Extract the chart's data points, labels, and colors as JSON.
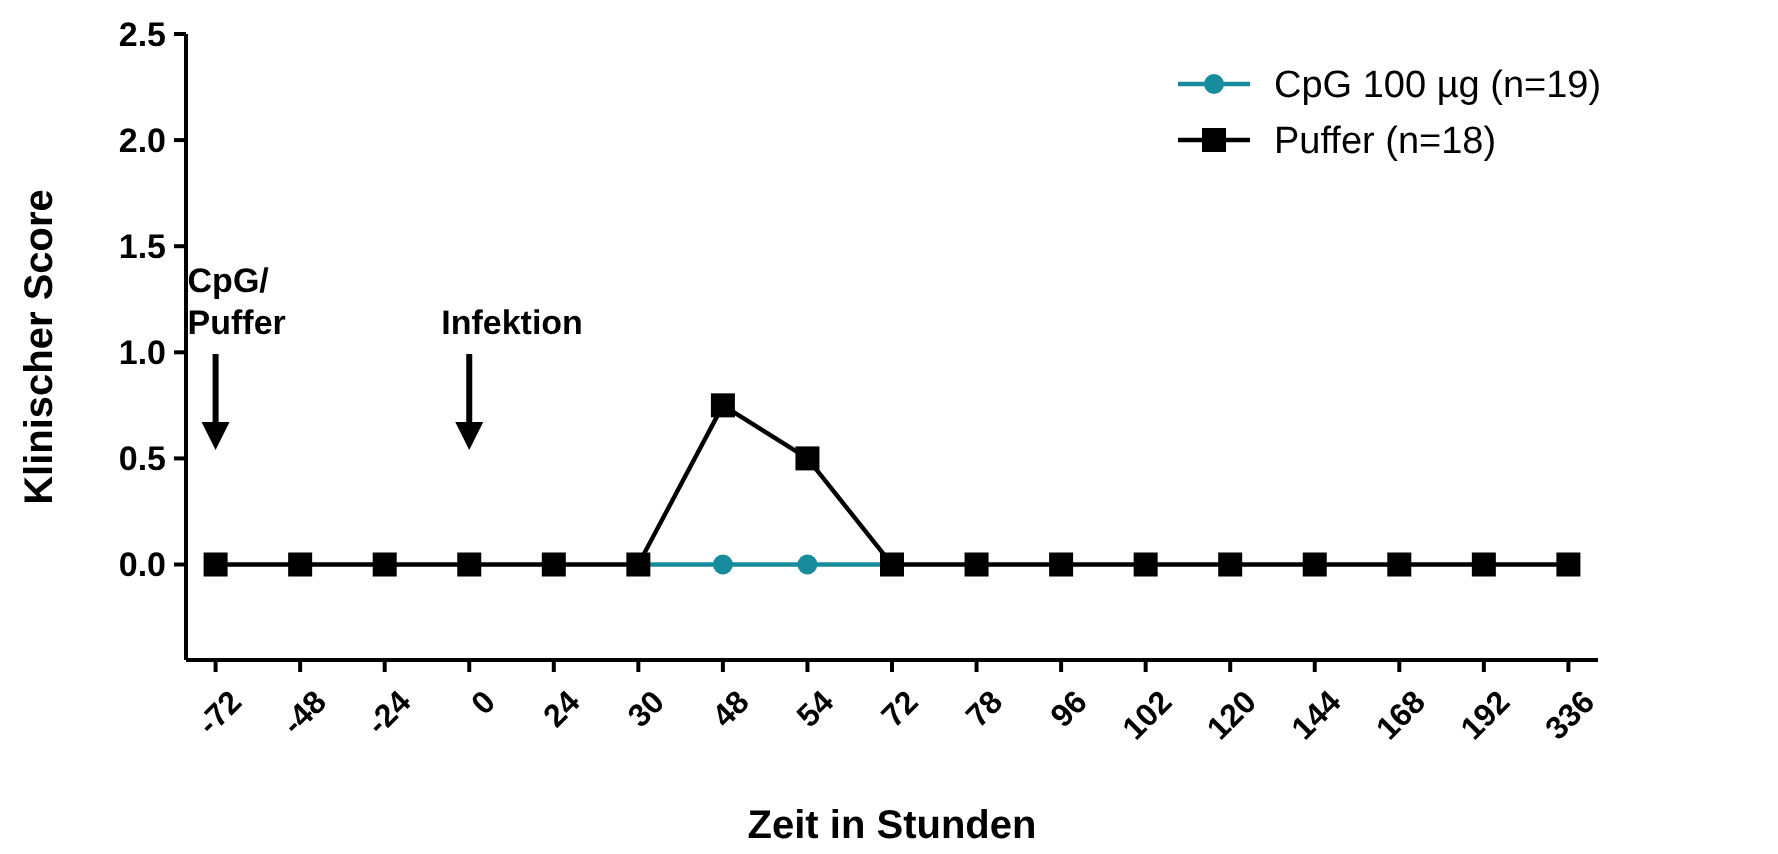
{
  "chart_data": {
    "type": "line",
    "xlabel": "Zeit in Stunden",
    "ylabel": "Klinischer Score",
    "categories": [
      "-72",
      "-48",
      "-24",
      "0",
      "24",
      "30",
      "48",
      "54",
      "72",
      "78",
      "96",
      "102",
      "120",
      "144",
      "168",
      "192",
      "336"
    ],
    "series": [
      {
        "name": "CpG 100 µg (n=19)",
        "color": "#168c9c",
        "marker": "circle",
        "values": [
          null,
          null,
          null,
          null,
          null,
          0,
          0,
          0,
          0,
          null,
          null,
          null,
          null,
          null,
          null,
          null,
          null
        ]
      },
      {
        "name": "Puffer (n=18)",
        "color": "#000000",
        "marker": "square",
        "values": [
          0,
          0,
          0,
          0,
          0,
          0,
          0.75,
          0.5,
          0,
          0,
          0,
          0,
          0,
          0,
          0,
          0,
          0
        ]
      }
    ],
    "ylim": [
      -0.45,
      2.5
    ],
    "yticks": [
      {
        "value": 0,
        "label": "0.0"
      },
      {
        "value": 0.5,
        "label": "0.5"
      },
      {
        "value": 1,
        "label": "1.0"
      },
      {
        "value": 1.5,
        "label": "1.5"
      },
      {
        "value": 2,
        "label": "2.0"
      },
      {
        "value": 2.5,
        "label": "2.5"
      }
    ],
    "legend": "top right",
    "grid": false,
    "annotations": [
      "CpG/\nPuffer",
      "Infektion"
    ]
  }
}
